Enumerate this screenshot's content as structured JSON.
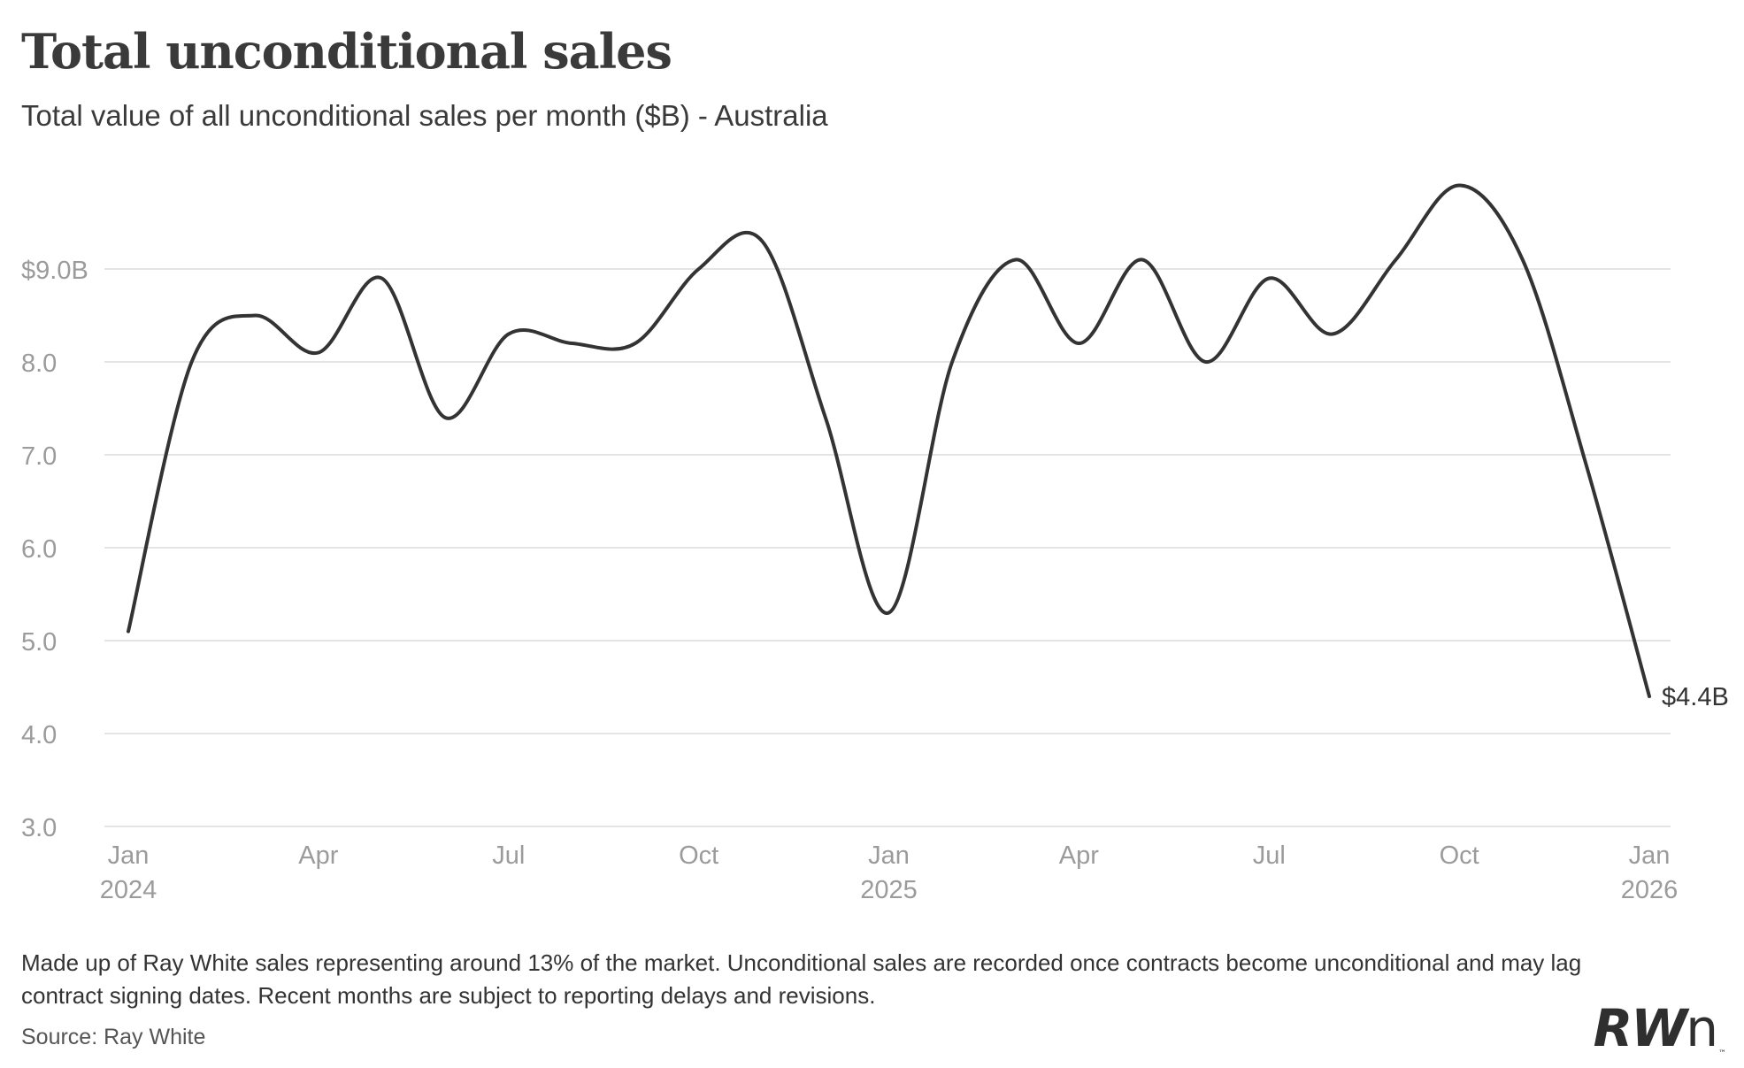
{
  "chart_data": {
    "type": "line",
    "title": "Total unconditional sales",
    "subtitle": "Total value of all unconditional sales per month ($B) - Australia",
    "xlabel": "",
    "ylabel": "",
    "ylim": [
      3.0,
      10.0
    ],
    "y_ticks": [
      {
        "value": 3.0,
        "label": "3.0"
      },
      {
        "value": 4.0,
        "label": "4.0"
      },
      {
        "value": 5.0,
        "label": "5.0"
      },
      {
        "value": 6.0,
        "label": "6.0"
      },
      {
        "value": 7.0,
        "label": "7.0"
      },
      {
        "value": 8.0,
        "label": "8.0"
      },
      {
        "value": 9.0,
        "label": "$9.0B"
      }
    ],
    "x_ticks": [
      {
        "index": 0,
        "month": "Jan",
        "year": "2024"
      },
      {
        "index": 3,
        "month": "Apr",
        "year": ""
      },
      {
        "index": 6,
        "month": "Jul",
        "year": ""
      },
      {
        "index": 9,
        "month": "Oct",
        "year": ""
      },
      {
        "index": 12,
        "month": "Jan",
        "year": "2025"
      },
      {
        "index": 15,
        "month": "Apr",
        "year": ""
      },
      {
        "index": 18,
        "month": "Jul",
        "year": ""
      },
      {
        "index": 21,
        "month": "Oct",
        "year": ""
      },
      {
        "index": 24,
        "month": "Jan",
        "year": "2026"
      }
    ],
    "grid": true,
    "series": [
      {
        "name": "Total unconditional sales",
        "color": "#333333",
        "categories": [
          "Jan 2024",
          "Feb 2024",
          "Mar 2024",
          "Apr 2024",
          "May 2024",
          "Jun 2024",
          "Jul 2024",
          "Aug 2024",
          "Sep 2024",
          "Oct 2024",
          "Nov 2024",
          "Dec 2024",
          "Jan 2025",
          "Feb 2025",
          "Mar 2025",
          "Apr 2025",
          "May 2025",
          "Jun 2025",
          "Jul 2025",
          "Aug 2025",
          "Sep 2025",
          "Oct 2025",
          "Nov 2025",
          "Dec 2025",
          "Jan 2026"
        ],
        "values": [
          5.1,
          8.0,
          8.5,
          8.1,
          8.9,
          7.4,
          8.3,
          8.2,
          8.2,
          9.0,
          9.3,
          7.4,
          5.3,
          8.0,
          9.1,
          8.2,
          9.1,
          8.0,
          8.9,
          8.3,
          9.1,
          9.9,
          9.1,
          6.9,
          4.4
        ]
      }
    ],
    "end_label": "$4.4B"
  },
  "footer": {
    "note": "Made up of Ray White sales representing around 13% of the market. Unconditional sales are recorded once contracts become unconditional and may lag contract signing dates. Recent months are subject to reporting delays and revisions.",
    "source": "Source: Ray White"
  },
  "logo": {
    "text_a": "RW",
    "text_b": "n",
    "tm": "™"
  },
  "colors": {
    "line": "#333333",
    "grid": "#e4e4e4",
    "axis_text": "#9b9b9b"
  }
}
